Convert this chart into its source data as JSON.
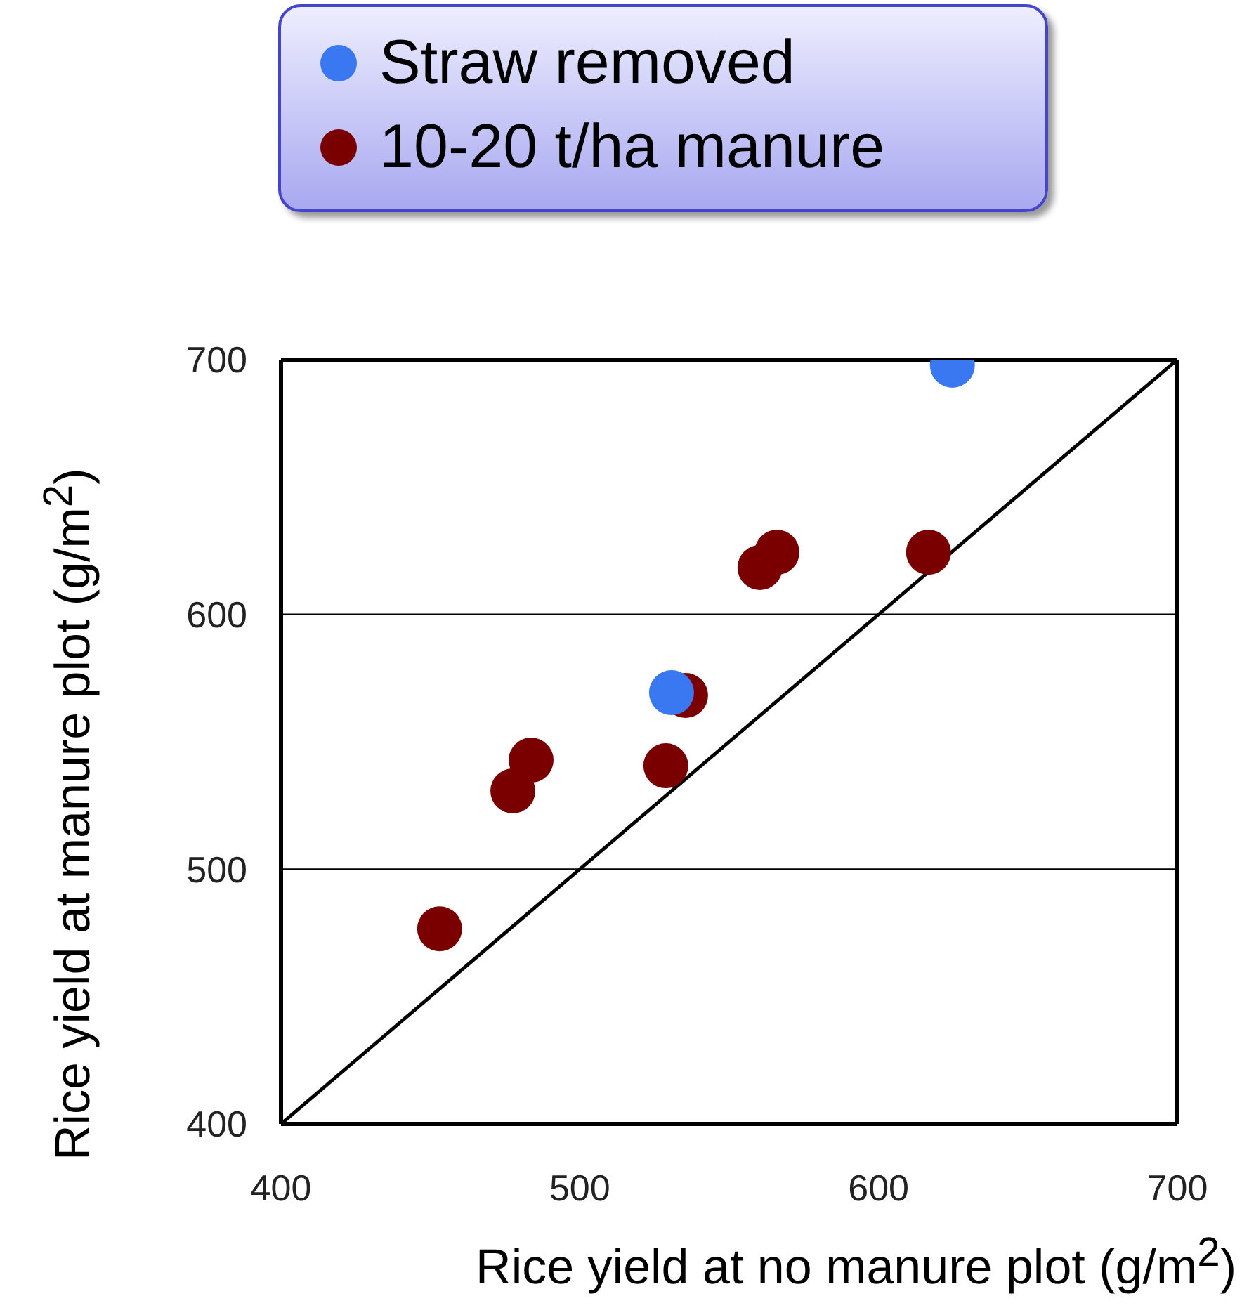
{
  "chart_data": {
    "type": "scatter",
    "xlabel": "Rice yield at no manure plot (g/m$^{2}$)",
    "ylabel": "Rice yield at manure plot (g/m$^{2}$)",
    "series": [
      {
        "name": "Straw removed",
        "color": "#3a78f2",
        "x": [
          530.7,
          624.7
        ],
        "values": [
          569.3,
          697.8
        ]
      },
      {
        "name": "10-20 t/ha manure",
        "color": "#7a0000",
        "x": [
          453.1,
          477.6,
          483.7,
          528.8,
          535.4,
          560.3,
          566.0,
          616.7
        ],
        "values": [
          476.6,
          530.7,
          542.8,
          540.6,
          568.2,
          618.4,
          624.4,
          624.4
        ]
      },
      {
        "type": "line",
        "color": "#000000",
        "x": [
          400,
          700
        ],
        "values": [
          400,
          700
        ],
        "marker": "none"
      }
    ],
    "xlim": [
      400,
      700
    ],
    "ylim": [
      400,
      700
    ],
    "xticks": [
      400,
      500,
      600,
      700
    ],
    "yticks": [
      400,
      500,
      600,
      700
    ],
    "grid": "y",
    "legend": "top",
    "marker": "circle"
  }
}
